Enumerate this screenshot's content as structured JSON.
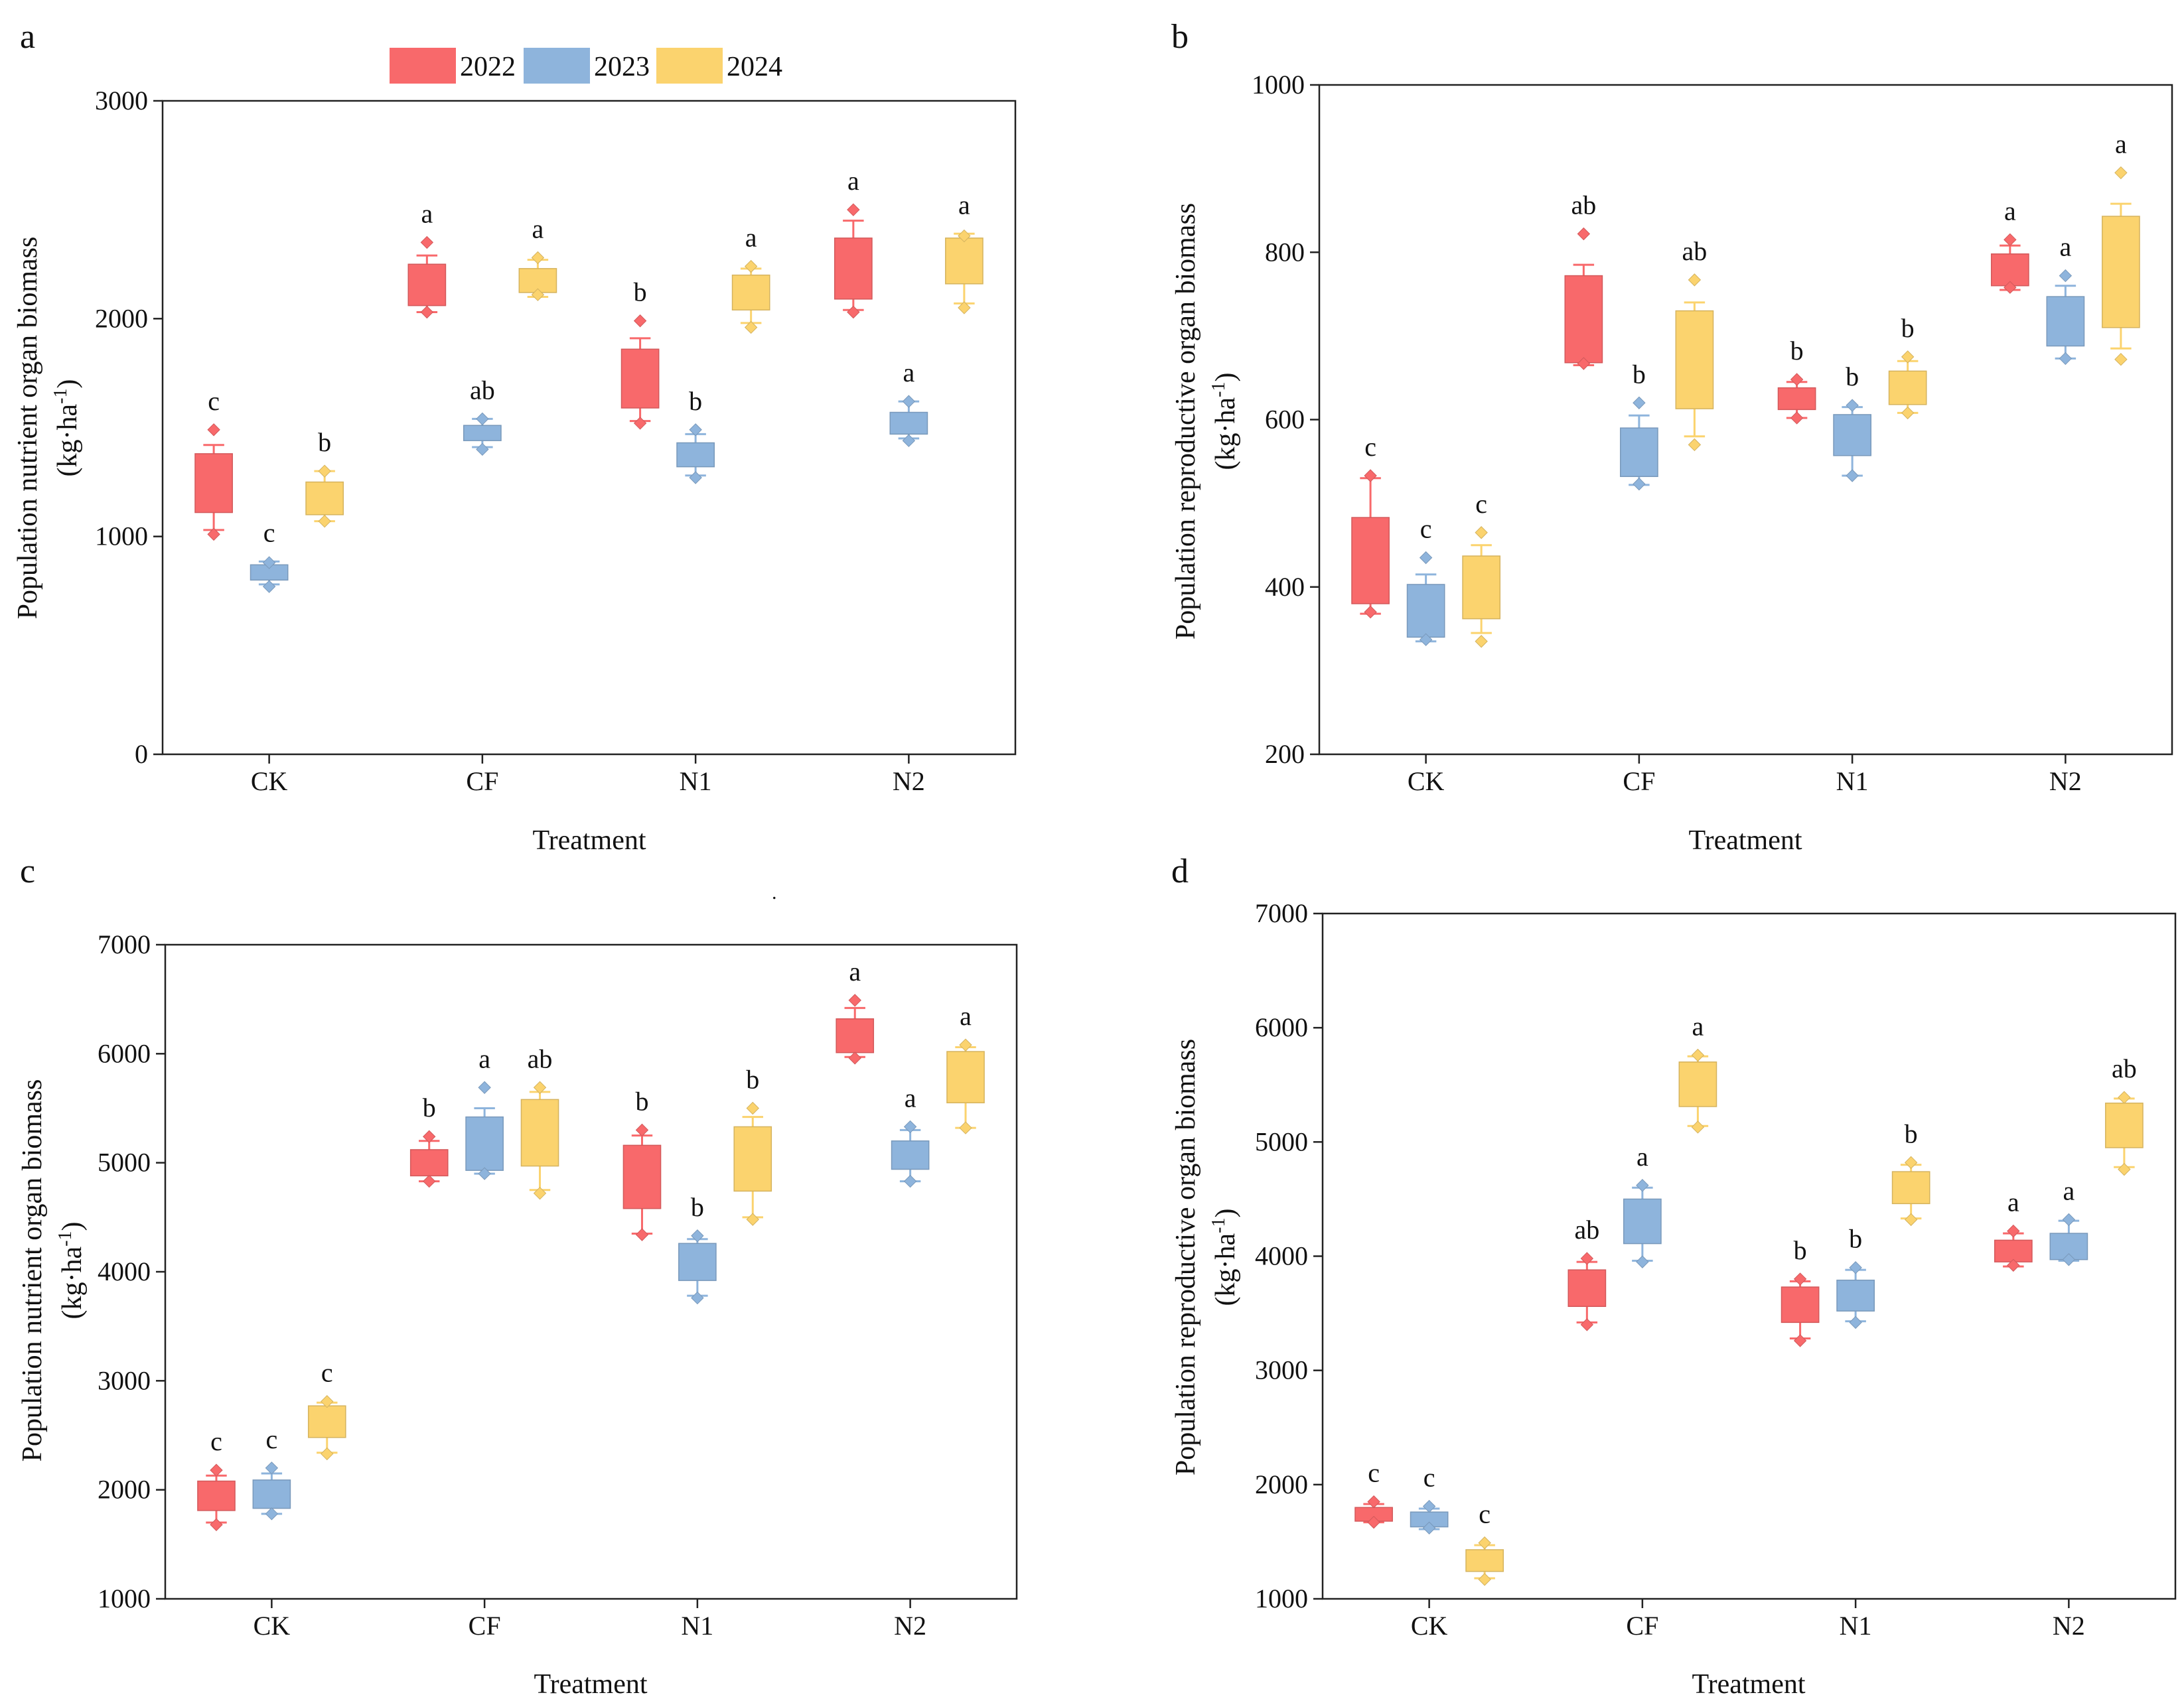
{
  "figure": {
    "legend": [
      {
        "label": "2022",
        "color": "#f8696b"
      },
      {
        "label": "2023",
        "color": "#8eb4dc"
      },
      {
        "label": "2024",
        "color": "#fbd36e"
      }
    ],
    "stray_mark": "."
  },
  "chart_data": [
    {
      "type": "box",
      "panel": "a",
      "xlabel": "Treatment",
      "ylabel": "Population nutrient organ biomass",
      "yunit_prefix": "(kg·ha",
      "yunit_sup": "-1",
      "yunit_suffix": ")",
      "ylim": [
        0,
        3000
      ],
      "yticks": [
        0,
        1000,
        2000,
        3000
      ],
      "categories": [
        "CK",
        "CF",
        "N1",
        "N2"
      ],
      "series": [
        {
          "name": "2022",
          "color": "#f8696b",
          "boxes": [
            {
              "q1": 1110,
              "q3": 1380,
              "wlo": 1030,
              "whi": 1420,
              "pts": [
                1490,
                1010
              ],
              "sig": "c"
            },
            {
              "q1": 2060,
              "q3": 2250,
              "wlo": 2030,
              "whi": 2290,
              "pts": [
                2350,
                2030
              ],
              "sig": "a"
            },
            {
              "q1": 1590,
              "q3": 1860,
              "wlo": 1530,
              "whi": 1910,
              "pts": [
                1990,
                1520
              ],
              "sig": "b"
            },
            {
              "q1": 2090,
              "q3": 2370,
              "wlo": 2040,
              "whi": 2450,
              "pts": [
                2500,
                2030
              ],
              "sig": "a"
            }
          ]
        },
        {
          "name": "2023",
          "color": "#8eb4dc",
          "boxes": [
            {
              "q1": 800,
              "q3": 870,
              "wlo": 780,
              "whi": 885,
              "pts": [
                880,
                770
              ],
              "sig": "c"
            },
            {
              "q1": 1440,
              "q3": 1510,
              "wlo": 1410,
              "whi": 1540,
              "pts": [
                1540,
                1400
              ],
              "sig": "ab"
            },
            {
              "q1": 1320,
              "q3": 1430,
              "wlo": 1280,
              "whi": 1470,
              "pts": [
                1490,
                1270
              ],
              "sig": "b"
            },
            {
              "q1": 1470,
              "q3": 1570,
              "wlo": 1450,
              "whi": 1620,
              "pts": [
                1620,
                1440
              ],
              "sig": "a"
            }
          ]
        },
        {
          "name": "2024",
          "color": "#fbd36e",
          "boxes": [
            {
              "q1": 1100,
              "q3": 1250,
              "wlo": 1070,
              "whi": 1300,
              "pts": [
                1300,
                1070
              ],
              "sig": "b"
            },
            {
              "q1": 2120,
              "q3": 2230,
              "wlo": 2100,
              "whi": 2270,
              "pts": [
                2280,
                2110
              ],
              "sig": "a"
            },
            {
              "q1": 2040,
              "q3": 2200,
              "wlo": 1980,
              "whi": 2230,
              "pts": [
                2240,
                1960
              ],
              "sig": "a"
            },
            {
              "q1": 2160,
              "q3": 2370,
              "wlo": 2070,
              "whi": 2390,
              "pts": [
                2380,
                2050
              ],
              "sig": "a"
            }
          ]
        }
      ]
    },
    {
      "type": "box",
      "panel": "b",
      "xlabel": "Treatment",
      "ylabel": "Population reproductive organ biomass",
      "yunit_prefix": "(kg·ha",
      "yunit_sup": "-1",
      "yunit_suffix": ")",
      "ylim": [
        200,
        1000
      ],
      "yticks": [
        200,
        400,
        600,
        800,
        1000
      ],
      "categories": [
        "CK",
        "CF",
        "N1",
        "N2"
      ],
      "series": [
        {
          "name": "2022",
          "color": "#f8696b",
          "boxes": [
            {
              "q1": 380,
              "q3": 483,
              "wlo": 368,
              "whi": 530,
              "pts": [
                533,
                370
              ],
              "sig": "c"
            },
            {
              "q1": 668,
              "q3": 772,
              "wlo": 665,
              "whi": 785,
              "pts": [
                822,
                667
              ],
              "sig": "ab"
            },
            {
              "q1": 612,
              "q3": 638,
              "wlo": 602,
              "whi": 645,
              "pts": [
                648,
                602
              ],
              "sig": "b"
            },
            {
              "q1": 760,
              "q3": 798,
              "wlo": 755,
              "whi": 808,
              "pts": [
                815,
                758
              ],
              "sig": "a"
            }
          ]
        },
        {
          "name": "2023",
          "color": "#8eb4dc",
          "boxes": [
            {
              "q1": 340,
              "q3": 403,
              "wlo": 335,
              "whi": 415,
              "pts": [
                435,
                337
              ],
              "sig": "c"
            },
            {
              "q1": 532,
              "q3": 590,
              "wlo": 522,
              "whi": 605,
              "pts": [
                620,
                523
              ],
              "sig": "b"
            },
            {
              "q1": 557,
              "q3": 606,
              "wlo": 533,
              "whi": 615,
              "pts": [
                617,
                533
              ],
              "sig": "b"
            },
            {
              "q1": 688,
              "q3": 747,
              "wlo": 673,
              "whi": 760,
              "pts": [
                772,
                673
              ],
              "sig": "a"
            }
          ]
        },
        {
          "name": "2024",
          "color": "#fbd36e",
          "boxes": [
            {
              "q1": 362,
              "q3": 437,
              "wlo": 345,
              "whi": 450,
              "pts": [
                465,
                335
              ],
              "sig": "c"
            },
            {
              "q1": 613,
              "q3": 730,
              "wlo": 580,
              "whi": 740,
              "pts": [
                767,
                570
              ],
              "sig": "ab"
            },
            {
              "q1": 618,
              "q3": 658,
              "wlo": 608,
              "whi": 670,
              "pts": [
                675,
                608
              ],
              "sig": "b"
            },
            {
              "q1": 710,
              "q3": 843,
              "wlo": 685,
              "whi": 858,
              "pts": [
                895,
                672
              ],
              "sig": "a"
            }
          ]
        }
      ]
    },
    {
      "type": "box",
      "panel": "c",
      "xlabel": "Treatment",
      "ylabel": "Population nutrient organ biomass",
      "yunit_prefix": "(kg·ha",
      "yunit_sup": "-1",
      "yunit_suffix": ")",
      "ylim": [
        1000,
        7000
      ],
      "yticks": [
        1000,
        2000,
        3000,
        4000,
        5000,
        6000,
        7000
      ],
      "categories": [
        "CK",
        "CF",
        "N1",
        "N2"
      ],
      "series": [
        {
          "name": "2022",
          "color": "#f8696b",
          "boxes": [
            {
              "q1": 1810,
              "q3": 2080,
              "wlo": 1700,
              "whi": 2130,
              "pts": [
                2180,
                1680
              ],
              "sig": "c"
            },
            {
              "q1": 4880,
              "q3": 5120,
              "wlo": 4830,
              "whi": 5200,
              "pts": [
                5240,
                4830
              ],
              "sig": "b"
            },
            {
              "q1": 4580,
              "q3": 5160,
              "wlo": 4350,
              "whi": 5250,
              "pts": [
                5300,
                4340
              ],
              "sig": "b"
            },
            {
              "q1": 6010,
              "q3": 6320,
              "wlo": 5970,
              "whi": 6420,
              "pts": [
                6490,
                5960
              ],
              "sig": "a"
            }
          ]
        },
        {
          "name": "2023",
          "color": "#8eb4dc",
          "boxes": [
            {
              "q1": 1830,
              "q3": 2090,
              "wlo": 1780,
              "whi": 2150,
              "pts": [
                2200,
                1780
              ],
              "sig": "c"
            },
            {
              "q1": 4930,
              "q3": 5420,
              "wlo": 4900,
              "whi": 5500,
              "pts": [
                5690,
                4900
              ],
              "sig": "a"
            },
            {
              "q1": 3920,
              "q3": 4260,
              "wlo": 3780,
              "whi": 4300,
              "pts": [
                4330,
                3760
              ],
              "sig": "b"
            },
            {
              "q1": 4940,
              "q3": 5200,
              "wlo": 4830,
              "whi": 5300,
              "pts": [
                5330,
                4830
              ],
              "sig": "a"
            }
          ]
        },
        {
          "name": "2024",
          "color": "#fbd36e",
          "boxes": [
            {
              "q1": 2480,
              "q3": 2770,
              "wlo": 2340,
              "whi": 2800,
              "pts": [
                2810,
                2330
              ],
              "sig": "c"
            },
            {
              "q1": 4970,
              "q3": 5580,
              "wlo": 4750,
              "whi": 5650,
              "pts": [
                5690,
                4720
              ],
              "sig": "ab"
            },
            {
              "q1": 4740,
              "q3": 5330,
              "wlo": 4500,
              "whi": 5420,
              "pts": [
                5500,
                4480
              ],
              "sig": "b"
            },
            {
              "q1": 5550,
              "q3": 6020,
              "wlo": 5320,
              "whi": 6060,
              "pts": [
                6080,
                5320
              ],
              "sig": "a"
            }
          ]
        }
      ]
    },
    {
      "type": "box",
      "panel": "d",
      "xlabel": "Treatment",
      "ylabel": "Population reproductive organ biomass",
      "yunit_prefix": "(kg·ha",
      "yunit_sup": "-1",
      "yunit_suffix": ")",
      "ylim": [
        1000,
        7000
      ],
      "yticks": [
        1000,
        2000,
        3000,
        4000,
        5000,
        6000,
        7000
      ],
      "categories": [
        "CK",
        "CF",
        "N1",
        "N2"
      ],
      "series": [
        {
          "name": "2022",
          "color": "#f8696b",
          "boxes": [
            {
              "q1": 1680,
              "q3": 1800,
              "wlo": 1670,
              "whi": 1830,
              "pts": [
                1850,
                1670
              ],
              "sig": "c"
            },
            {
              "q1": 3560,
              "q3": 3880,
              "wlo": 3420,
              "whi": 3950,
              "pts": [
                3980,
                3400
              ],
              "sig": "ab"
            },
            {
              "q1": 3420,
              "q3": 3730,
              "wlo": 3280,
              "whi": 3780,
              "pts": [
                3800,
                3260
              ],
              "sig": "b"
            },
            {
              "q1": 3950,
              "q3": 4140,
              "wlo": 3910,
              "whi": 4200,
              "pts": [
                4220,
                3920
              ],
              "sig": "a"
            }
          ]
        },
        {
          "name": "2023",
          "color": "#8eb4dc",
          "boxes": [
            {
              "q1": 1630,
              "q3": 1760,
              "wlo": 1610,
              "whi": 1790,
              "pts": [
                1810,
                1620
              ],
              "sig": "c"
            },
            {
              "q1": 4110,
              "q3": 4500,
              "wlo": 3960,
              "whi": 4600,
              "pts": [
                4620,
                3950
              ],
              "sig": "a"
            },
            {
              "q1": 3520,
              "q3": 3790,
              "wlo": 3430,
              "whi": 3880,
              "pts": [
                3900,
                3420
              ],
              "sig": "b"
            },
            {
              "q1": 3970,
              "q3": 4200,
              "wlo": 3960,
              "whi": 4310,
              "pts": [
                4320,
                3970
              ],
              "sig": "a"
            }
          ]
        },
        {
          "name": "2024",
          "color": "#fbd36e",
          "boxes": [
            {
              "q1": 1240,
              "q3": 1430,
              "wlo": 1180,
              "whi": 1470,
              "pts": [
                1490,
                1170
              ],
              "sig": "c"
            },
            {
              "q1": 5310,
              "q3": 5700,
              "wlo": 5140,
              "whi": 5750,
              "pts": [
                5760,
                5130
              ],
              "sig": "a"
            },
            {
              "q1": 4460,
              "q3": 4740,
              "wlo": 4330,
              "whi": 4800,
              "pts": [
                4820,
                4320
              ],
              "sig": "b"
            },
            {
              "q1": 4950,
              "q3": 5340,
              "wlo": 4780,
              "whi": 5380,
              "pts": [
                5390,
                4760
              ],
              "sig": "ab"
            }
          ]
        }
      ]
    }
  ]
}
